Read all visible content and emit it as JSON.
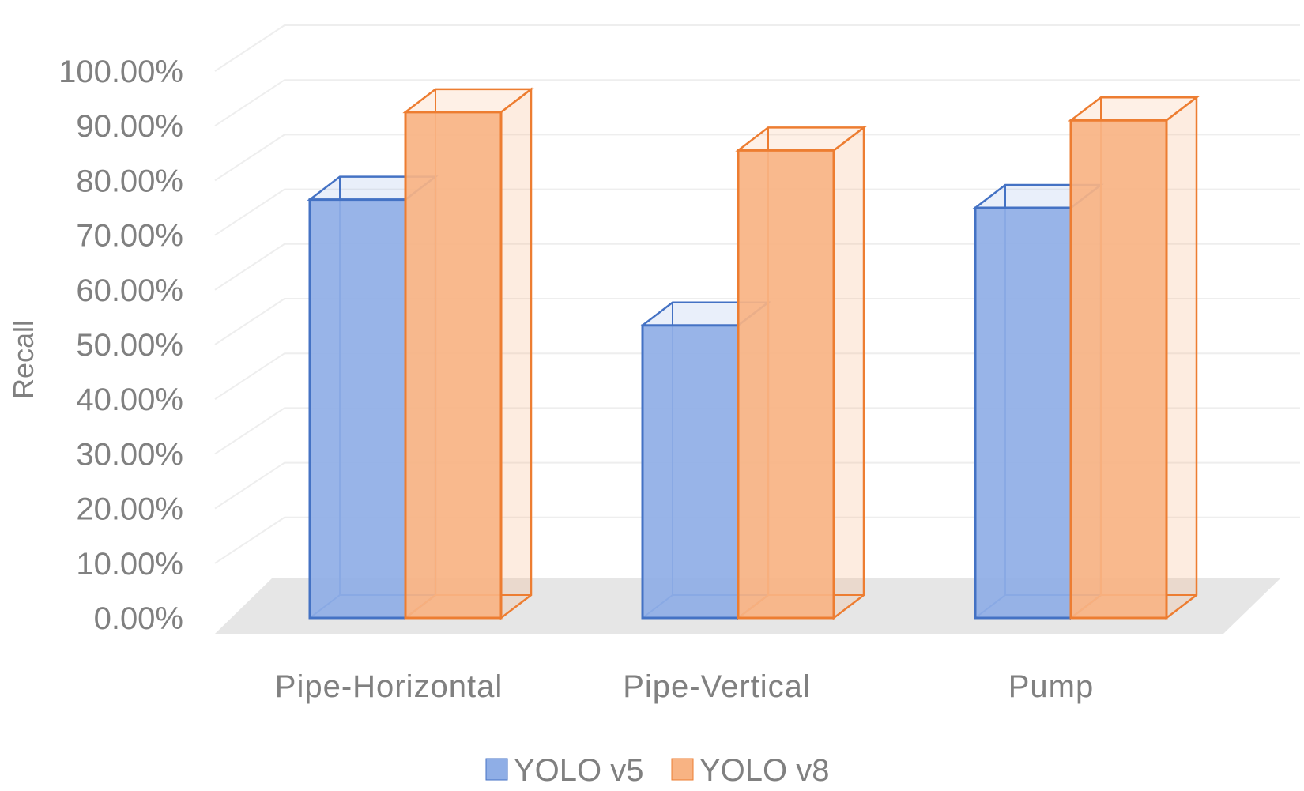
{
  "chart_data": {
    "type": "bar",
    "style": "3d-clustered-column",
    "title": "",
    "xlabel": "",
    "ylabel": "Recall",
    "categories": [
      "Pipe-Horizontal",
      "Pipe-Vertical",
      "Pump"
    ],
    "series": [
      {
        "name": "YOLO v5",
        "values": [
          76.5,
          53.5,
          75.0
        ],
        "color": "#4472C4",
        "fill": "#8FAEE6"
      },
      {
        "name": "YOLO v8",
        "values": [
          92.5,
          85.5,
          91.0
        ],
        "color": "#ED7D31",
        "fill": "#F8B383"
      }
    ],
    "ylim": [
      0,
      100
    ],
    "yticks": [
      0,
      10,
      20,
      30,
      40,
      50,
      60,
      70,
      80,
      90,
      100
    ],
    "ytick_labels": [
      "0.00%",
      "10.00%",
      "20.00%",
      "30.00%",
      "40.00%",
      "50.00%",
      "60.00%",
      "70.00%",
      "80.00%",
      "90.00%",
      "100.00%"
    ],
    "grid": true,
    "legend_position": "bottom"
  }
}
